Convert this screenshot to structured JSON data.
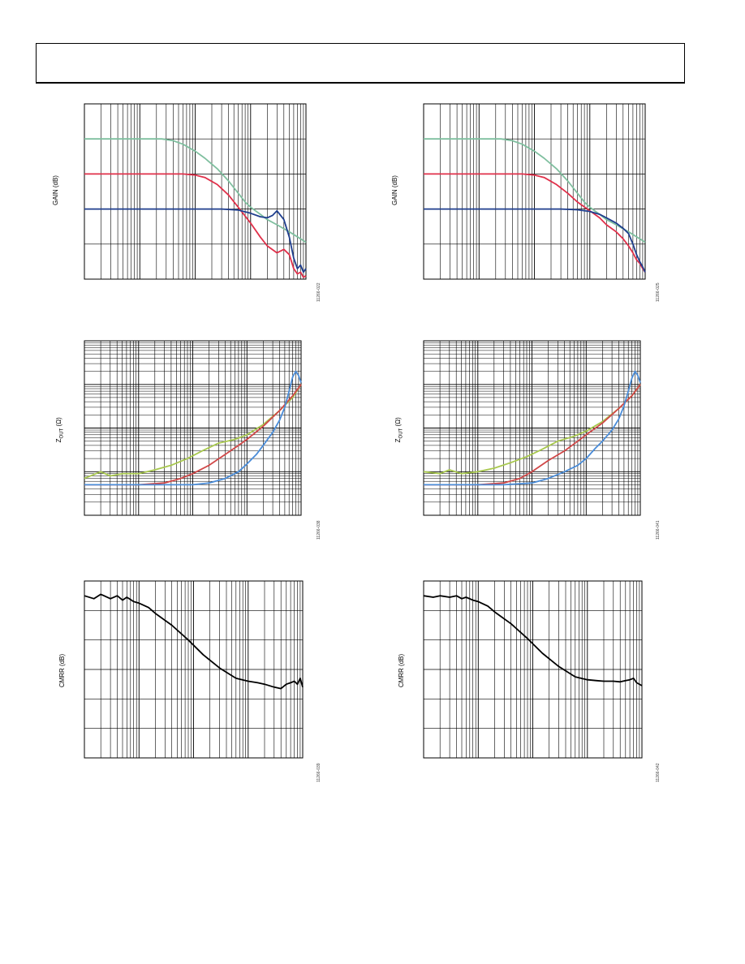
{
  "header": {
    "title": ""
  },
  "chart_data": [
    {
      "type": "line",
      "id": "gain-left",
      "xscale": "log",
      "xlim": [
        1,
        10000
      ],
      "ylim": [
        0,
        5
      ],
      "ylabel": "GAIN (dB)",
      "fig_id": "11266-022",
      "xgrid_decades": [
        [
          1,
          10
        ],
        [
          10,
          100
        ],
        [
          100,
          10000
        ]
      ],
      "ygrid": 5,
      "series": [
        {
          "color": "#7fbf9f",
          "x": [
            1,
            3,
            8,
            15,
            25,
            40,
            60,
            100,
            150,
            250,
            400,
            600,
            800,
            1000,
            1500,
            2000,
            3000,
            5000,
            8000,
            10000
          ],
          "y": [
            4,
            4,
            4,
            4,
            4,
            3.95,
            3.85,
            3.65,
            3.45,
            3.15,
            2.8,
            2.45,
            2.2,
            2.05,
            1.85,
            1.7,
            1.55,
            1.35,
            1.15,
            1.05
          ]
        },
        {
          "color": "#e0304a",
          "x": [
            1,
            5,
            10,
            30,
            60,
            100,
            150,
            250,
            400,
            600,
            1000,
            1500,
            2000,
            3000,
            4000,
            5000,
            6000,
            7000,
            8000,
            9000,
            10000
          ],
          "y": [
            3,
            3,
            3,
            3,
            3,
            2.97,
            2.9,
            2.7,
            2.4,
            2.05,
            1.6,
            1.2,
            0.95,
            0.75,
            0.85,
            0.7,
            0.3,
            0.15,
            0.2,
            0.05,
            0.1
          ]
        },
        {
          "color": "#1f3e8e",
          "x": [
            1,
            10,
            100,
            300,
            600,
            1000,
            1500,
            2000,
            2500,
            3000,
            4000,
            5000,
            6000,
            7000,
            8000,
            9000,
            10000
          ],
          "y": [
            2,
            2,
            2,
            2,
            1.97,
            1.88,
            1.78,
            1.75,
            1.82,
            1.95,
            1.7,
            1.2,
            0.6,
            0.3,
            0.4,
            0.2,
            0.3
          ]
        }
      ]
    },
    {
      "type": "line",
      "id": "gain-right",
      "xscale": "log",
      "xlim": [
        1,
        10000
      ],
      "ylim": [
        0,
        5
      ],
      "ylabel": "GAIN (dB)",
      "fig_id": "11266-025",
      "xgrid_decades": [
        [
          1,
          10
        ],
        [
          10,
          100
        ],
        [
          100,
          10000
        ]
      ],
      "ygrid": 5,
      "series": [
        {
          "color": "#7fbf9f",
          "x": [
            1,
            3,
            8,
            15,
            25,
            40,
            60,
            100,
            150,
            250,
            400,
            600,
            800,
            1000,
            1500,
            2000,
            3000,
            5000,
            8000,
            10000
          ],
          "y": [
            4,
            4,
            4,
            4,
            4,
            3.95,
            3.85,
            3.65,
            3.45,
            3.15,
            2.8,
            2.45,
            2.2,
            2.05,
            1.85,
            1.7,
            1.55,
            1.35,
            1.15,
            1.05
          ]
        },
        {
          "color": "#e0304a",
          "x": [
            1,
            5,
            10,
            30,
            60,
            100,
            150,
            250,
            400,
            600,
            1000,
            1500,
            2000,
            3000,
            4000,
            5000,
            6000,
            7000,
            8000,
            9000,
            10000
          ],
          "y": [
            3,
            3,
            3,
            3,
            3,
            2.97,
            2.9,
            2.7,
            2.45,
            2.2,
            1.95,
            1.75,
            1.55,
            1.35,
            1.15,
            0.95,
            0.75,
            0.55,
            0.45,
            0.3,
            0.2
          ]
        },
        {
          "color": "#1f3e8e",
          "x": [
            1,
            10,
            100,
            300,
            600,
            1000,
            1500,
            2000,
            3000,
            4000,
            5000,
            6000,
            7000,
            8000,
            9000,
            10000
          ],
          "y": [
            2,
            2,
            2,
            2,
            1.98,
            1.93,
            1.85,
            1.75,
            1.6,
            1.45,
            1.3,
            1.0,
            0.7,
            0.5,
            0.35,
            0.2
          ]
        }
      ]
    },
    {
      "type": "line",
      "id": "zout-left",
      "xscale": "log",
      "xlim": [
        1,
        10000
      ],
      "yscale": "log",
      "ylim": [
        0.01,
        100
      ],
      "ylabel": "Z",
      "ylabel_sub": "OUT",
      "ylabel_unit": " (Ω)",
      "fig_id": "11266-038",
      "series": [
        {
          "color": "#a8c84e",
          "x": [
            1,
            2,
            3,
            5,
            10,
            20,
            40,
            80,
            150,
            300,
            600,
            1000,
            2000,
            4000,
            7000,
            10000
          ],
          "y": [
            0.07,
            0.1,
            0.08,
            0.09,
            0.09,
            0.11,
            0.14,
            0.2,
            0.3,
            0.45,
            0.55,
            0.7,
            1.2,
            2.5,
            5,
            10
          ]
        },
        {
          "color": "#d04848",
          "x": [
            1,
            3,
            10,
            30,
            60,
            100,
            200,
            400,
            700,
            1000,
            2000,
            4000,
            7000,
            10000
          ],
          "y": [
            0.05,
            0.05,
            0.05,
            0.055,
            0.07,
            0.09,
            0.14,
            0.25,
            0.4,
            0.55,
            1.1,
            2.5,
            5.5,
            10
          ]
        },
        {
          "color": "#4a8cd8",
          "x": [
            1,
            10,
            30,
            100,
            200,
            400,
            700,
            1000,
            1500,
            2000,
            3000,
            4000,
            5000,
            6000,
            7000,
            8000,
            9000,
            10000
          ],
          "y": [
            0.05,
            0.05,
            0.05,
            0.05,
            0.055,
            0.07,
            0.1,
            0.15,
            0.25,
            0.4,
            0.8,
            1.5,
            3,
            7,
            15,
            20,
            16,
            11
          ]
        }
      ]
    },
    {
      "type": "line",
      "id": "zout-right",
      "xscale": "log",
      "xlim": [
        1,
        10000
      ],
      "yscale": "log",
      "ylim": [
        0.01,
        100
      ],
      "ylabel": "Z",
      "ylabel_sub": "OUT",
      "ylabel_unit": " (Ω)",
      "fig_id": "11266-041",
      "series": [
        {
          "color": "#a8c84e",
          "x": [
            1,
            2,
            3,
            5,
            10,
            20,
            40,
            80,
            150,
            300,
            600,
            1000,
            2000,
            4000,
            7000,
            10000
          ],
          "y": [
            0.1,
            0.09,
            0.11,
            0.09,
            0.1,
            0.12,
            0.16,
            0.22,
            0.32,
            0.5,
            0.65,
            0.85,
            1.4,
            2.8,
            5.5,
            10
          ]
        },
        {
          "color": "#d04848",
          "x": [
            1,
            3,
            10,
            30,
            60,
            100,
            200,
            400,
            700,
            1000,
            2000,
            4000,
            7000,
            10000
          ],
          "y": [
            0.05,
            0.05,
            0.05,
            0.055,
            0.07,
            0.1,
            0.18,
            0.3,
            0.5,
            0.7,
            1.3,
            2.8,
            5.5,
            10
          ]
        },
        {
          "color": "#4a8cd8",
          "x": [
            1,
            10,
            30,
            100,
            200,
            400,
            700,
            1000,
            1500,
            2000,
            3000,
            4000,
            5000,
            6000,
            7000,
            8000,
            9000,
            10000
          ],
          "y": [
            0.05,
            0.05,
            0.05,
            0.055,
            0.07,
            0.1,
            0.14,
            0.2,
            0.35,
            0.5,
            0.9,
            1.6,
            3.2,
            7,
            14,
            20,
            16,
            11
          ]
        }
      ]
    },
    {
      "type": "line",
      "id": "cmrr-left",
      "xscale": "log",
      "xlim": [
        1,
        10000
      ],
      "ylim": [
        0,
        6
      ],
      "ylabel": "CMRR (dB)",
      "fig_id": "11266-039",
      "series": [
        {
          "color": "#000000",
          "x": [
            1,
            1.5,
            2,
            3,
            4,
            5,
            6,
            8,
            10,
            15,
            20,
            40,
            80,
            150,
            300,
            600,
            1000,
            1500,
            2000,
            3000,
            4000,
            5000,
            6000,
            7000,
            8000,
            9000,
            10000
          ],
          "y": [
            5.5,
            5.4,
            5.55,
            5.4,
            5.5,
            5.35,
            5.45,
            5.3,
            5.25,
            5.1,
            4.9,
            4.5,
            4.0,
            3.5,
            3.05,
            2.7,
            2.6,
            2.55,
            2.5,
            2.4,
            2.35,
            2.5,
            2.55,
            2.6,
            2.5,
            2.7,
            2.4
          ]
        }
      ]
    },
    {
      "type": "line",
      "id": "cmrr-right",
      "xscale": "log",
      "xlim": [
        1,
        10000
      ],
      "ylim": [
        0,
        6
      ],
      "ylabel": "CMRR (dB)",
      "fig_id": "11266-042",
      "series": [
        {
          "color": "#000000",
          "x": [
            1,
            1.5,
            2,
            3,
            4,
            5,
            6,
            8,
            10,
            15,
            20,
            40,
            80,
            150,
            300,
            600,
            1000,
            1500,
            2000,
            3000,
            4000,
            5000,
            6000,
            7000,
            8000,
            10000
          ],
          "y": [
            5.5,
            5.45,
            5.5,
            5.45,
            5.5,
            5.4,
            5.45,
            5.35,
            5.3,
            5.15,
            4.95,
            4.55,
            4.05,
            3.55,
            3.1,
            2.75,
            2.65,
            2.62,
            2.6,
            2.6,
            2.58,
            2.62,
            2.65,
            2.7,
            2.55,
            2.45
          ]
        }
      ]
    }
  ]
}
